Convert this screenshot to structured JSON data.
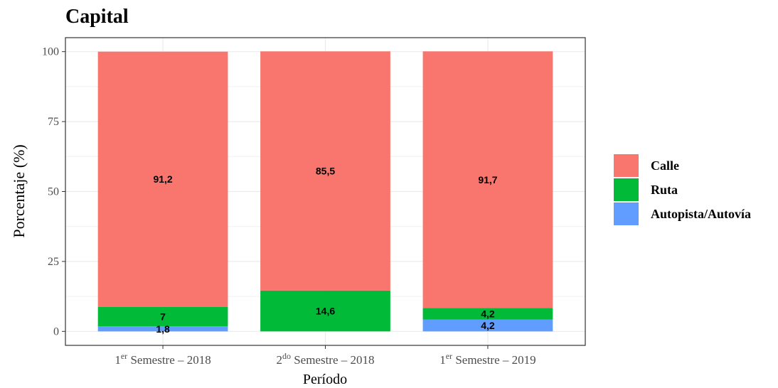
{
  "chart_data": {
    "type": "stacked_bar",
    "title": "Capital",
    "x_label": "Período",
    "y_label": "Porcentaje (%)",
    "categories": [
      "1er Semestre – 2018",
      "2do Semestre – 2018",
      "1er Semestre – 2019"
    ],
    "series": [
      {
        "name": "Autopista/Autovía",
        "color": "#619CFF",
        "values": [
          1.8,
          null,
          4.2
        ],
        "value_labels": [
          "1,8",
          null,
          "4,2"
        ]
      },
      {
        "name": "Ruta",
        "color": "#00BA38",
        "values": [
          7,
          14.6,
          4.2
        ],
        "value_labels": [
          "7",
          "14,6",
          "4,2"
        ]
      },
      {
        "name": "Calle",
        "color": "#F8766D",
        "values": [
          91.2,
          85.5,
          91.7
        ],
        "value_labels": [
          "91,2",
          "85,5",
          "91,7"
        ]
      }
    ],
    "ylim": [
      -5,
      105
    ],
    "yticks": [
      0,
      25,
      50,
      75,
      100
    ],
    "grid": true,
    "legend": "right"
  }
}
